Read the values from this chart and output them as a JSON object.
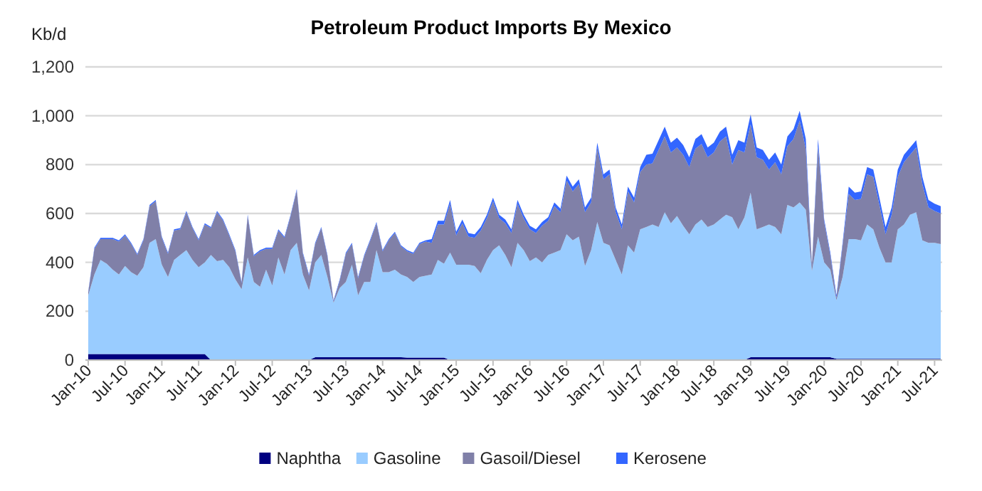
{
  "chart_data": {
    "type": "area",
    "stacked": true,
    "title": "Petroleum Product Imports By Mexico",
    "ylabel": "Kb/d",
    "categories": [
      "Jan-10",
      null,
      null,
      null,
      null,
      null,
      "Jul-10",
      null,
      null,
      null,
      null,
      null,
      "Jan-11",
      null,
      null,
      null,
      null,
      null,
      "Jul-11",
      null,
      null,
      null,
      null,
      null,
      "Jan-12",
      null,
      null,
      null,
      null,
      null,
      "Jul-12",
      null,
      null,
      null,
      null,
      null,
      "Jan-13",
      null,
      null,
      null,
      null,
      null,
      "Jul-13",
      null,
      null,
      null,
      null,
      null,
      "Jan-14",
      null,
      null,
      null,
      null,
      null,
      "Jul-14",
      null,
      null,
      null,
      null,
      null,
      "Jan-15",
      null,
      null,
      null,
      null,
      null,
      "Jul-15",
      null,
      null,
      null,
      null,
      null,
      "Jan-16",
      null,
      null,
      null,
      null,
      null,
      "Jul-16",
      null,
      null,
      null,
      null,
      null,
      "Jan-17",
      null,
      null,
      null,
      null,
      null,
      "Jul-17",
      null,
      null,
      null,
      null,
      null,
      "Jan-18",
      null,
      null,
      null,
      null,
      null,
      "Jul-18",
      null,
      null,
      null,
      null,
      null,
      "Jan-19",
      null,
      null,
      null,
      null,
      null,
      "Jul-19",
      null,
      null,
      null,
      null,
      null,
      "Jan-20",
      null,
      null,
      null,
      null,
      null,
      "Jul-20",
      null,
      null,
      null,
      null,
      null,
      "Jan-21",
      null,
      null,
      null,
      null,
      null,
      "Jul-21",
      null
    ],
    "series": [
      {
        "name": "Naphtha",
        "color": "#000080",
        "values": [
          25,
          25,
          25,
          25,
          25,
          25,
          25,
          25,
          25,
          25,
          25,
          25,
          25,
          25,
          25,
          25,
          25,
          25,
          25,
          25,
          0,
          0,
          0,
          0,
          0,
          0,
          0,
          0,
          0,
          0,
          0,
          0,
          0,
          0,
          0,
          0,
          0,
          12,
          12,
          12,
          12,
          12,
          12,
          12,
          12,
          12,
          12,
          12,
          12,
          12,
          12,
          12,
          10,
          10,
          10,
          10,
          10,
          10,
          10,
          0,
          0,
          0,
          0,
          0,
          0,
          0,
          0,
          0,
          0,
          0,
          0,
          0,
          0,
          0,
          0,
          0,
          0,
          0,
          0,
          0,
          0,
          0,
          0,
          0,
          0,
          0,
          0,
          0,
          0,
          0,
          0,
          0,
          0,
          0,
          0,
          0,
          0,
          0,
          0,
          0,
          0,
          0,
          0,
          0,
          0,
          0,
          0,
          0,
          12,
          12,
          12,
          12,
          12,
          12,
          12,
          12,
          12,
          12,
          12,
          12,
          12,
          12,
          5,
          5,
          5,
          5,
          5,
          5,
          5,
          5,
          5,
          5,
          5,
          5,
          5,
          5,
          5,
          5,
          5,
          5
        ]
      },
      {
        "name": "Gasoline",
        "color": "#99ccff",
        "values": [
          240,
          325,
          385,
          370,
          345,
          325,
          360,
          335,
          320,
          355,
          455,
          470,
          365,
          315,
          385,
          405,
          425,
          385,
          355,
          375,
          430,
          405,
          410,
          380,
          330,
          290,
          420,
          320,
          300,
          370,
          305,
          420,
          350,
          450,
          480,
          350,
          285,
          388,
          418,
          328,
          223,
          283,
          308,
          378,
          253,
          308,
          308,
          438,
          348,
          348,
          358,
          338,
          330,
          310,
          330,
          335,
          340,
          400,
          385,
          440,
          390,
          390,
          390,
          385,
          355,
          410,
          450,
          470,
          430,
          380,
          480,
          450,
          405,
          420,
          400,
          430,
          440,
          450,
          515,
          490,
          505,
          385,
          450,
          565,
          480,
          470,
          410,
          350,
          470,
          440,
          535,
          545,
          555,
          545,
          605,
          560,
          590,
          550,
          515,
          555,
          575,
          545,
          555,
          575,
          595,
          585,
          535,
          585,
          673,
          523,
          533,
          543,
          533,
          503,
          623,
          613,
          633,
          603,
          353,
          493,
          388,
          358,
          240,
          335,
          490,
          490,
          485,
          550,
          530,
          455,
          395,
          395,
          530,
          550,
          590,
          600,
          485,
          475,
          475,
          470
        ]
      },
      {
        "name": "Gasoil/Diesel",
        "color": "#8080a8",
        "values": [
          10,
          105,
          85,
          100,
          125,
          135,
          125,
          115,
          85,
          110,
          150,
          155,
          110,
          95,
          120,
          105,
          155,
          130,
          110,
          155,
          110,
          200,
          160,
          130,
          115,
          25,
          170,
          105,
          145,
          85,
          150,
          110,
          150,
          140,
          215,
          85,
          60,
          75,
          110,
          85,
          5,
          30,
          115,
          85,
          70,
          105,
          170,
          110,
          85,
          130,
          150,
          115,
          105,
          115,
          135,
          140,
          130,
          145,
          160,
          200,
          120,
          170,
          115,
          115,
          175,
          170,
          200,
          110,
          130,
          140,
          160,
          130,
          130,
          100,
          150,
          140,
          190,
          155,
          220,
          200,
          215,
          220,
          195,
          305,
          260,
          290,
          195,
          185,
          220,
          205,
          235,
          255,
          250,
          315,
          310,
          290,
          280,
          290,
          275,
          310,
          310,
          285,
          295,
          320,
          320,
          215,
          325,
          265,
          280,
          295,
          275,
          225,
          265,
          245,
          240,
          280,
          335,
          250,
          20,
          370,
          165,
          60,
          10,
          130,
          185,
          160,
          170,
          205,
          215,
          175,
          115,
          195,
          215,
          255,
          245,
          265,
          230,
          145,
          130,
          125
        ]
      },
      {
        "name": "Kerosene",
        "color": "#3366ff",
        "values": [
          5,
          5,
          5,
          5,
          5,
          5,
          5,
          5,
          5,
          5,
          5,
          5,
          5,
          5,
          5,
          5,
          5,
          5,
          5,
          5,
          5,
          5,
          5,
          5,
          5,
          5,
          5,
          5,
          5,
          5,
          5,
          5,
          5,
          5,
          5,
          5,
          5,
          5,
          5,
          5,
          5,
          5,
          5,
          5,
          5,
          5,
          5,
          5,
          5,
          5,
          5,
          5,
          5,
          5,
          5,
          5,
          15,
          15,
          15,
          15,
          15,
          15,
          15,
          15,
          15,
          15,
          15,
          15,
          15,
          15,
          15,
          15,
          15,
          15,
          15,
          15,
          15,
          15,
          20,
          20,
          20,
          20,
          20,
          20,
          20,
          20,
          20,
          20,
          20,
          20,
          20,
          40,
          40,
          40,
          40,
          40,
          40,
          40,
          40,
          40,
          40,
          40,
          40,
          40,
          40,
          40,
          40,
          40,
          40,
          40,
          40,
          40,
          40,
          40,
          40,
          40,
          40,
          40,
          5,
          30,
          10,
          10,
          10,
          10,
          30,
          30,
          30,
          30,
          30,
          30,
          30,
          30,
          30,
          30,
          30,
          30,
          30,
          30,
          30,
          30
        ]
      }
    ],
    "ylim": [
      0,
      1200
    ],
    "yticks": [
      0,
      200,
      400,
      600,
      800,
      {
        "value": 1000,
        "label": "1,000"
      },
      {
        "value": 1200,
        "label": "1,200"
      }
    ],
    "grid": "y",
    "legend": "bottom"
  }
}
